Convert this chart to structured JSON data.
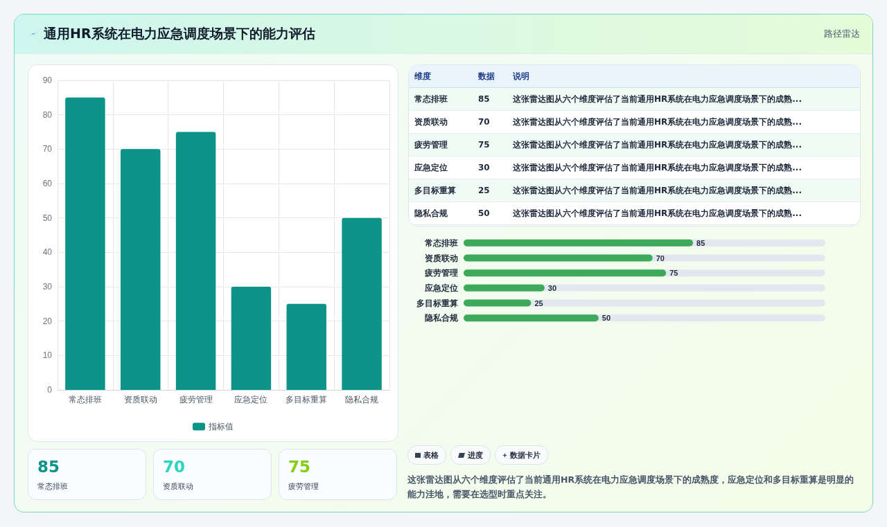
{
  "chart_data": [
    {
      "type": "other",
      "title": "通用HR系统在电力应急调度场景下的能力评估",
      "subtitle": "路径雷达"
    },
    {
      "type": "bar",
      "categories": [
        "常态排班",
        "资质联动",
        "疲劳管理",
        "应急定位",
        "多目标重算",
        "隐私合规"
      ],
      "series": [
        {
          "name": "指标值",
          "color": "#0d9488",
          "values": [
            85,
            70,
            75,
            30,
            25,
            50
          ]
        }
      ],
      "ylim": [
        0,
        90
      ],
      "yticks": [
        0,
        10,
        20,
        30,
        40,
        50,
        60,
        70,
        80,
        90
      ],
      "grid": true,
      "legend": "bottom"
    },
    {
      "type": "other",
      "annotations": [
        "维度",
        "数据",
        "说明",
        "常态排班",
        "85",
        "这张雷达图从六个维度评估了当前通用HR系统在电力应急调度场景下的成熟...",
        "资质联动",
        "70",
        "这张雷达图从六个维度评估了当前通用HR系统在电力应急调度场景下的成熟...",
        "疲劳管理",
        "75",
        "这张雷达图从六个维度评估了当前通用HR系统在电力应急调度场景下的成熟...",
        "应急定位",
        "30",
        "这张雷达图从六个维度评估了当前通用HR系统在电力应急调度场景下的成熟...",
        "多目标重算",
        "25",
        "这张雷达图从六个维度评估了当前通用HR系统在电力应急调度场景下的成熟...",
        "隐私合规",
        "50",
        "这张雷达图从六个维度评估了当前通用HR系统在电力应急调度场景下的成熟..."
      ]
    },
    {
      "type": "bar",
      "orientation": "horizontal",
      "categories": [
        "常态排班",
        "资质联动",
        "疲劳管理",
        "应急定位",
        "多目标重算",
        "隐私合规"
      ],
      "values": [
        85,
        70,
        75,
        30,
        25,
        50
      ],
      "color": "#3da95a",
      "xlim": [
        0,
        134
      ],
      "data_labels": true,
      "tick_labels": "y"
    },
    {
      "type": "other",
      "annotations": [
        "85",
        "常态排班",
        "70",
        "资质联动",
        "75",
        "疲劳管理"
      ]
    },
    {
      "type": "other",
      "categories": [
        "表格",
        "进度",
        "数据卡片"
      ],
      "annotations": [
        "这张雷达图从六个维度评估了当前通用HR系统在电力应急调度场景下的成熟度，应急定位和多目标重算是明显的能力洼地，需要在选型时重点关注。"
      ]
    }
  ]
}
